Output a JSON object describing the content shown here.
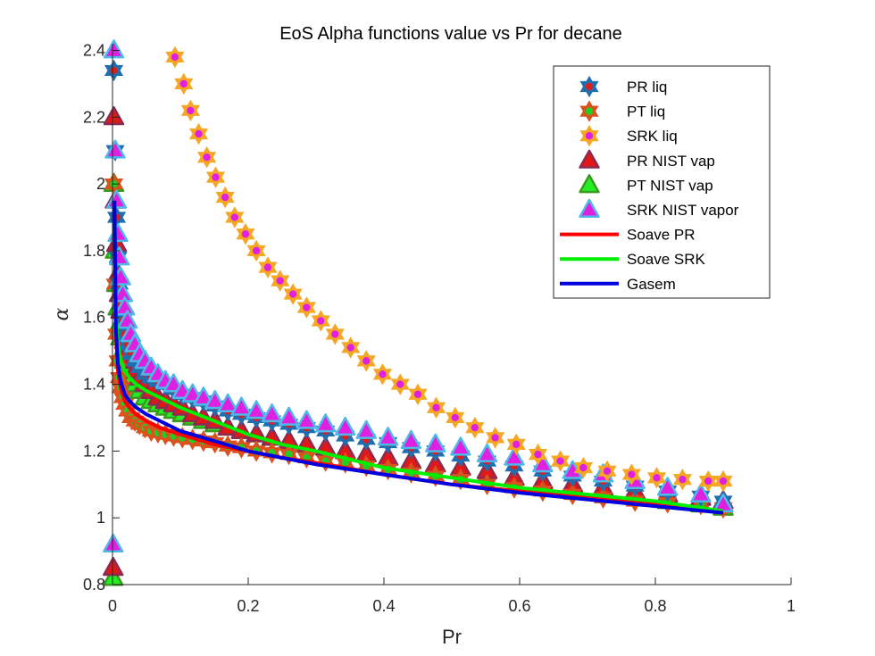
{
  "chart_data": {
    "type": "scatter",
    "title": "EoS Alpha functions value vs Pr for decane",
    "xlabel": "Pr",
    "ylabel": "α",
    "xlim": [
      0,
      1
    ],
    "ylim": [
      0.8,
      2.42
    ],
    "x_ticks": [
      "0",
      "0.2",
      "0.4",
      "0.6",
      "0.8",
      "1"
    ],
    "y_ticks": [
      "0.8",
      "1",
      "1.2",
      "1.4",
      "1.6",
      "1.8",
      "2",
      "2.2",
      "2.4"
    ],
    "grid": false,
    "legend_position": "top-right",
    "series": [
      {
        "name": "PR liq",
        "kind": "marker",
        "marker": "hexagram",
        "edge_color": "#1f6fb0",
        "face_color": "#d62020",
        "x": [
          0.002,
          0.004,
          0.006,
          0.008,
          0.01,
          0.012,
          0.015,
          0.018,
          0.022,
          0.027,
          0.033,
          0.04,
          0.048,
          0.057,
          0.067,
          0.078,
          0.09,
          0.103,
          0.118,
          0.134,
          0.151,
          0.17,
          0.19,
          0.212,
          0.235,
          0.26,
          0.286,
          0.314,
          0.343,
          0.374,
          0.406,
          0.44,
          0.476,
          0.513,
          0.552,
          0.592,
          0.634,
          0.678,
          0.723,
          0.77,
          0.818,
          0.867,
          0.9
        ],
        "y": [
          2.34,
          2.1,
          1.9,
          1.78,
          1.7,
          1.64,
          1.59,
          1.55,
          1.52,
          1.49,
          1.47,
          1.45,
          1.43,
          1.42,
          1.41,
          1.4,
          1.385,
          1.37,
          1.36,
          1.35,
          1.335,
          1.32,
          1.31,
          1.3,
          1.29,
          1.28,
          1.27,
          1.26,
          1.245,
          1.235,
          1.225,
          1.21,
          1.2,
          1.185,
          1.17,
          1.155,
          1.14,
          1.125,
          1.11,
          1.095,
          1.08,
          1.065,
          1.05
        ]
      },
      {
        "name": "PT liq",
        "kind": "marker",
        "marker": "hexagram",
        "edge_color": "#d9531e",
        "face_color": "#22cc22",
        "x": [
          0.002,
          0.004,
          0.006,
          0.008,
          0.01,
          0.012,
          0.015,
          0.018,
          0.022,
          0.027,
          0.033,
          0.04,
          0.048,
          0.057,
          0.067,
          0.078,
          0.09,
          0.103,
          0.118,
          0.134,
          0.151,
          0.17,
          0.19,
          0.212,
          0.235,
          0.26,
          0.286,
          0.314,
          0.343,
          0.374,
          0.406,
          0.44,
          0.476,
          0.513,
          0.552,
          0.592,
          0.634,
          0.678,
          0.723,
          0.77,
          0.818,
          0.867,
          0.9
        ],
        "y": [
          2.0,
          1.7,
          1.55,
          1.47,
          1.42,
          1.39,
          1.36,
          1.34,
          1.32,
          1.3,
          1.29,
          1.28,
          1.27,
          1.26,
          1.255,
          1.25,
          1.245,
          1.24,
          1.235,
          1.23,
          1.225,
          1.215,
          1.21,
          1.2,
          1.195,
          1.19,
          1.18,
          1.17,
          1.165,
          1.155,
          1.145,
          1.135,
          1.125,
          1.115,
          1.1,
          1.09,
          1.08,
          1.07,
          1.06,
          1.05,
          1.045,
          1.04,
          1.03
        ]
      },
      {
        "name": "SRK liq",
        "kind": "marker",
        "marker": "hexagram",
        "edge_color": "#f5a623",
        "face_color": "#e020e0",
        "x": [
          0.092,
          0.105,
          0.115,
          0.127,
          0.139,
          0.152,
          0.166,
          0.18,
          0.196,
          0.212,
          0.229,
          0.247,
          0.266,
          0.286,
          0.307,
          0.328,
          0.351,
          0.374,
          0.398,
          0.424,
          0.45,
          0.477,
          0.505,
          0.534,
          0.564,
          0.595,
          0.627,
          0.66,
          0.694,
          0.729,
          0.765,
          0.802,
          0.84,
          0.878,
          0.9
        ],
        "y": [
          2.38,
          2.3,
          2.22,
          2.15,
          2.08,
          2.02,
          1.96,
          1.9,
          1.85,
          1.8,
          1.75,
          1.71,
          1.67,
          1.63,
          1.59,
          1.55,
          1.51,
          1.47,
          1.43,
          1.4,
          1.37,
          1.33,
          1.3,
          1.27,
          1.24,
          1.22,
          1.19,
          1.17,
          1.15,
          1.14,
          1.13,
          1.12,
          1.115,
          1.11,
          1.11
        ]
      },
      {
        "name": "PR NIST vap",
        "kind": "marker",
        "marker": "triangle",
        "edge_color": "#8b2a52",
        "face_color": "#e01818",
        "x": [
          0.001,
          0.002,
          0.004,
          0.006,
          0.008,
          0.01,
          0.012,
          0.015,
          0.018,
          0.022,
          0.027,
          0.033,
          0.04,
          0.048,
          0.057,
          0.067,
          0.078,
          0.09,
          0.103,
          0.118,
          0.134,
          0.151,
          0.17,
          0.19,
          0.212,
          0.235,
          0.26,
          0.286,
          0.314,
          0.343,
          0.374,
          0.406,
          0.44,
          0.476,
          0.513,
          0.552,
          0.592,
          0.634,
          0.678,
          0.723,
          0.77,
          0.818,
          0.867,
          0.9
        ],
        "y": [
          0.85,
          2.2,
          1.95,
          1.82,
          1.73,
          1.67,
          1.62,
          1.57,
          1.53,
          1.5,
          1.47,
          1.44,
          1.42,
          1.4,
          1.38,
          1.36,
          1.35,
          1.34,
          1.33,
          1.31,
          1.3,
          1.29,
          1.27,
          1.26,
          1.25,
          1.24,
          1.23,
          1.22,
          1.21,
          1.2,
          1.19,
          1.18,
          1.17,
          1.16,
          1.15,
          1.14,
          1.12,
          1.11,
          1.1,
          1.09,
          1.08,
          1.07,
          1.06,
          1.05
        ]
      },
      {
        "name": "PT NIST vap",
        "kind": "marker",
        "marker": "triangle",
        "edge_color": "#3a9a20",
        "face_color": "#22ee22",
        "x": [
          0.001,
          0.002,
          0.004,
          0.006,
          0.008,
          0.01,
          0.012,
          0.015,
          0.018,
          0.022,
          0.027,
          0.033,
          0.04,
          0.048,
          0.057,
          0.067,
          0.078,
          0.09,
          0.103,
          0.118,
          0.134,
          0.151,
          0.17,
          0.19,
          0.212,
          0.235,
          0.26,
          0.286,
          0.314,
          0.343,
          0.374,
          0.406,
          0.44,
          0.476,
          0.513,
          0.552,
          0.592,
          0.634,
          0.678,
          0.723,
          0.77,
          0.818,
          0.867,
          0.9
        ],
        "y": [
          0.82,
          2.0,
          1.8,
          1.7,
          1.63,
          1.58,
          1.54,
          1.5,
          1.47,
          1.44,
          1.42,
          1.4,
          1.38,
          1.36,
          1.35,
          1.34,
          1.33,
          1.32,
          1.31,
          1.3,
          1.29,
          1.28,
          1.27,
          1.26,
          1.25,
          1.24,
          1.23,
          1.22,
          1.21,
          1.2,
          1.19,
          1.18,
          1.17,
          1.16,
          1.15,
          1.14,
          1.12,
          1.11,
          1.1,
          1.08,
          1.07,
          1.05,
          1.04,
          1.03
        ]
      },
      {
        "name": "SRK NIST vapor",
        "kind": "marker",
        "marker": "triangle",
        "edge_color": "#4fb8e8",
        "face_color": "#e020e0",
        "x": [
          0.001,
          0.002,
          0.004,
          0.006,
          0.008,
          0.01,
          0.012,
          0.015,
          0.018,
          0.022,
          0.027,
          0.033,
          0.04,
          0.048,
          0.057,
          0.067,
          0.078,
          0.09,
          0.103,
          0.118,
          0.134,
          0.151,
          0.17,
          0.19,
          0.212,
          0.235,
          0.26,
          0.286,
          0.314,
          0.343,
          0.374,
          0.406,
          0.44,
          0.476,
          0.513,
          0.552,
          0.592,
          0.634,
          0.678,
          0.723,
          0.77,
          0.818,
          0.867,
          0.9
        ],
        "y": [
          0.92,
          2.4,
          2.1,
          1.95,
          1.85,
          1.78,
          1.72,
          1.67,
          1.63,
          1.59,
          1.55,
          1.52,
          1.49,
          1.47,
          1.45,
          1.43,
          1.41,
          1.4,
          1.38,
          1.37,
          1.36,
          1.35,
          1.34,
          1.33,
          1.32,
          1.31,
          1.3,
          1.29,
          1.28,
          1.27,
          1.26,
          1.24,
          1.23,
          1.22,
          1.21,
          1.19,
          1.18,
          1.16,
          1.14,
          1.13,
          1.11,
          1.09,
          1.07,
          1.04
        ]
      },
      {
        "name": "Soave PR",
        "kind": "line",
        "color": "#ff0000",
        "x": [
          0.003,
          0.005,
          0.008,
          0.012,
          0.018,
          0.025,
          0.035,
          0.05,
          0.07,
          0.1,
          0.15,
          0.2,
          0.25,
          0.3,
          0.4,
          0.5,
          0.6,
          0.7,
          0.8,
          0.9
        ],
        "y": [
          1.93,
          1.55,
          1.44,
          1.39,
          1.35,
          1.33,
          1.31,
          1.29,
          1.27,
          1.25,
          1.22,
          1.2,
          1.18,
          1.165,
          1.13,
          1.1,
          1.08,
          1.06,
          1.04,
          1.02
        ]
      },
      {
        "name": "Soave SRK",
        "kind": "line",
        "color": "#00ee00",
        "x": [
          0.003,
          0.005,
          0.008,
          0.012,
          0.018,
          0.025,
          0.035,
          0.05,
          0.07,
          0.1,
          0.15,
          0.2,
          0.25,
          0.3,
          0.4,
          0.5,
          0.6,
          0.7,
          0.8,
          0.9
        ],
        "y": [
          1.95,
          1.6,
          1.52,
          1.47,
          1.44,
          1.42,
          1.4,
          1.38,
          1.36,
          1.33,
          1.29,
          1.25,
          1.22,
          1.2,
          1.15,
          1.12,
          1.09,
          1.07,
          1.05,
          1.02
        ]
      },
      {
        "name": "Gasem",
        "kind": "line",
        "color": "#0000e0",
        "x": [
          0.003,
          0.005,
          0.008,
          0.012,
          0.018,
          0.025,
          0.035,
          0.05,
          0.07,
          0.1,
          0.15,
          0.2,
          0.25,
          0.3,
          0.4,
          0.5,
          0.6,
          0.7,
          0.8,
          0.9
        ],
        "y": [
          1.95,
          1.57,
          1.46,
          1.41,
          1.37,
          1.35,
          1.33,
          1.31,
          1.29,
          1.26,
          1.23,
          1.2,
          1.18,
          1.16,
          1.13,
          1.1,
          1.075,
          1.055,
          1.035,
          1.015
        ]
      }
    ]
  }
}
